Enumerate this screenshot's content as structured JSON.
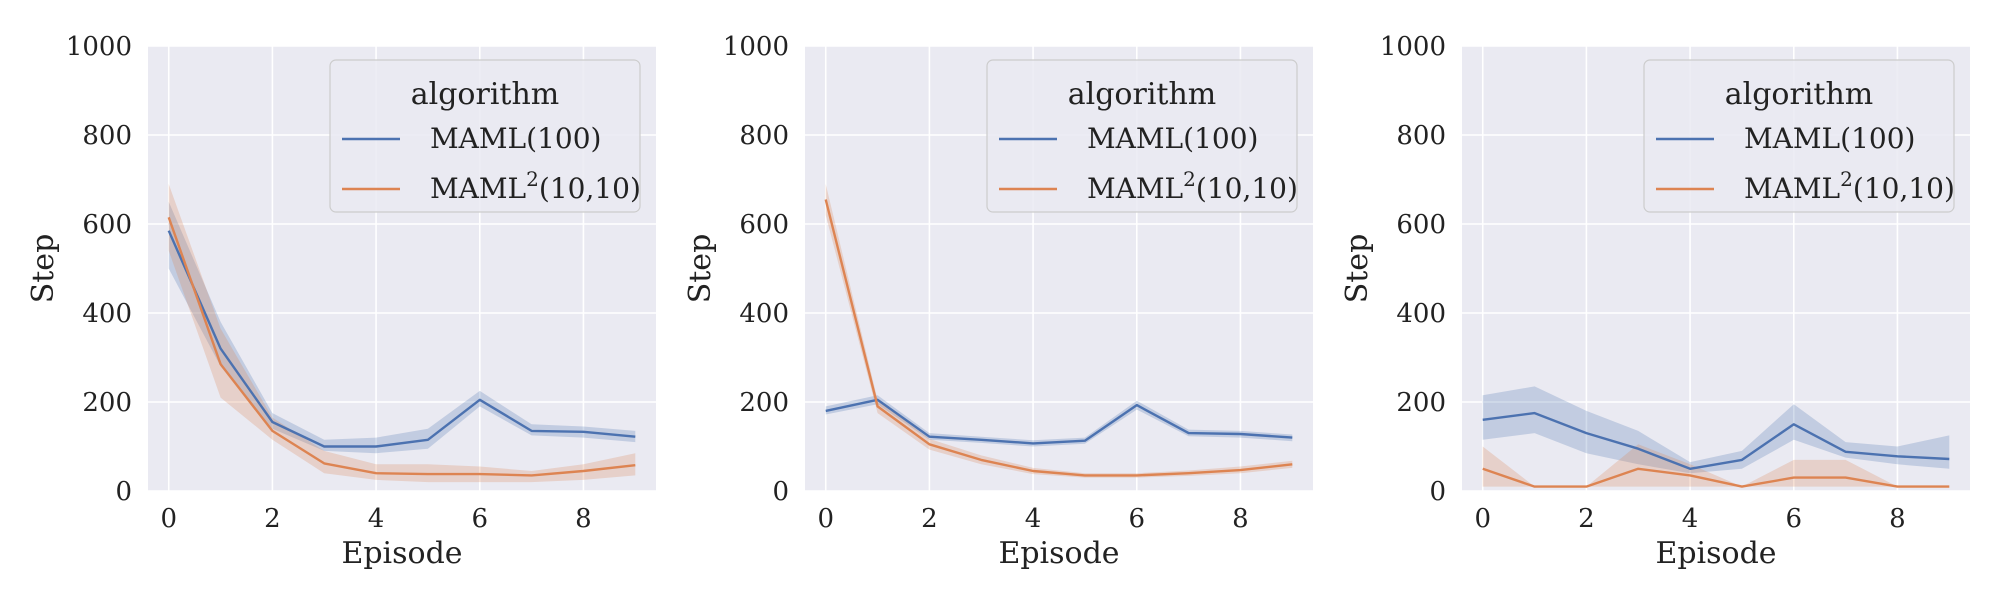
{
  "legend_title": "algorithm",
  "series_names": [
    "MAML(100)",
    "MAML(10,10)"
  ],
  "series_name_parts": [
    {
      "text": "MAML(100)"
    },
    {
      "base": "MAML",
      "sup": "2",
      "rest": "(10,10)"
    }
  ],
  "colors": {
    "MAML(100)": "#4c72b0",
    "MAML(10,10)": "#dd8452",
    "panel_bg": "#eaeaf2",
    "grid": "#ffffff"
  },
  "chart_data": [
    {
      "type": "line",
      "title": "",
      "xlabel": "Episode",
      "ylabel": "Step",
      "xlim": [
        -0.4,
        9.4
      ],
      "ylim": [
        0,
        1000
      ],
      "xticks": [
        0,
        2,
        4,
        6,
        8
      ],
      "yticks": [
        0,
        200,
        400,
        600,
        800,
        1000
      ],
      "grid": true,
      "legend_position": "top-right",
      "x": [
        0,
        1,
        2,
        3,
        4,
        5,
        6,
        7,
        8,
        9
      ],
      "series": [
        {
          "name": "MAML(100)",
          "values": [
            585,
            320,
            155,
            100,
            100,
            115,
            205,
            135,
            133,
            122
          ],
          "lower": [
            500,
            280,
            140,
            90,
            85,
            95,
            190,
            125,
            120,
            110
          ],
          "upper": [
            650,
            380,
            175,
            115,
            120,
            140,
            225,
            150,
            145,
            135
          ]
        },
        {
          "name": "MAML(10,10)",
          "values": [
            615,
            285,
            135,
            62,
            40,
            38,
            38,
            35,
            45,
            58
          ],
          "lower": [
            540,
            210,
            115,
            40,
            25,
            20,
            20,
            20,
            25,
            35
          ],
          "upper": [
            690,
            365,
            165,
            90,
            60,
            60,
            55,
            45,
            60,
            85
          ]
        }
      ]
    },
    {
      "type": "line",
      "title": "",
      "xlabel": "Episode",
      "ylabel": "Step",
      "xlim": [
        -0.4,
        9.4
      ],
      "ylim": [
        0,
        1000
      ],
      "xticks": [
        0,
        2,
        4,
        6,
        8
      ],
      "yticks": [
        0,
        200,
        400,
        600,
        800,
        1000
      ],
      "grid": true,
      "legend_position": "top-right",
      "x": [
        0,
        1,
        2,
        3,
        4,
        5,
        6,
        7,
        8,
        9
      ],
      "series": [
        {
          "name": "MAML(100)",
          "values": [
            180,
            205,
            122,
            115,
            107,
            113,
            193,
            130,
            128,
            120
          ],
          "lower": [
            172,
            195,
            115,
            108,
            100,
            106,
            183,
            123,
            120,
            112
          ],
          "upper": [
            190,
            215,
            130,
            122,
            114,
            120,
            203,
            138,
            135,
            127
          ]
        },
        {
          "name": "MAML(10,10)",
          "values": [
            655,
            190,
            105,
            70,
            45,
            35,
            35,
            40,
            47,
            60
          ],
          "lower": [
            620,
            175,
            93,
            60,
            38,
            30,
            30,
            34,
            40,
            52
          ],
          "upper": [
            690,
            205,
            117,
            80,
            52,
            40,
            40,
            46,
            55,
            68
          ]
        }
      ]
    },
    {
      "type": "line",
      "title": "",
      "xlabel": "Episode",
      "ylabel": "Step",
      "xlim": [
        -0.4,
        9.4
      ],
      "ylim": [
        0,
        1000
      ],
      "xticks": [
        0,
        2,
        4,
        6,
        8
      ],
      "yticks": [
        0,
        200,
        400,
        600,
        800,
        1000
      ],
      "grid": true,
      "legend_position": "top-right",
      "x": [
        0,
        1,
        2,
        3,
        4,
        5,
        6,
        7,
        8,
        9
      ],
      "series": [
        {
          "name": "MAML(100)",
          "values": [
            160,
            175,
            130,
            95,
            50,
            70,
            150,
            88,
            78,
            72
          ],
          "lower": [
            115,
            130,
            85,
            60,
            40,
            50,
            115,
            75,
            60,
            50
          ],
          "upper": [
            215,
            235,
            180,
            135,
            65,
            90,
            195,
            110,
            100,
            125
          ]
        },
        {
          "name": "MAML(10,10)",
          "values": [
            50,
            10,
            10,
            50,
            35,
            10,
            30,
            30,
            10,
            10
          ],
          "lower": [
            10,
            10,
            10,
            10,
            10,
            10,
            10,
            10,
            10,
            10
          ],
          "upper": [
            100,
            10,
            10,
            105,
            60,
            10,
            70,
            70,
            10,
            10
          ]
        }
      ]
    }
  ]
}
